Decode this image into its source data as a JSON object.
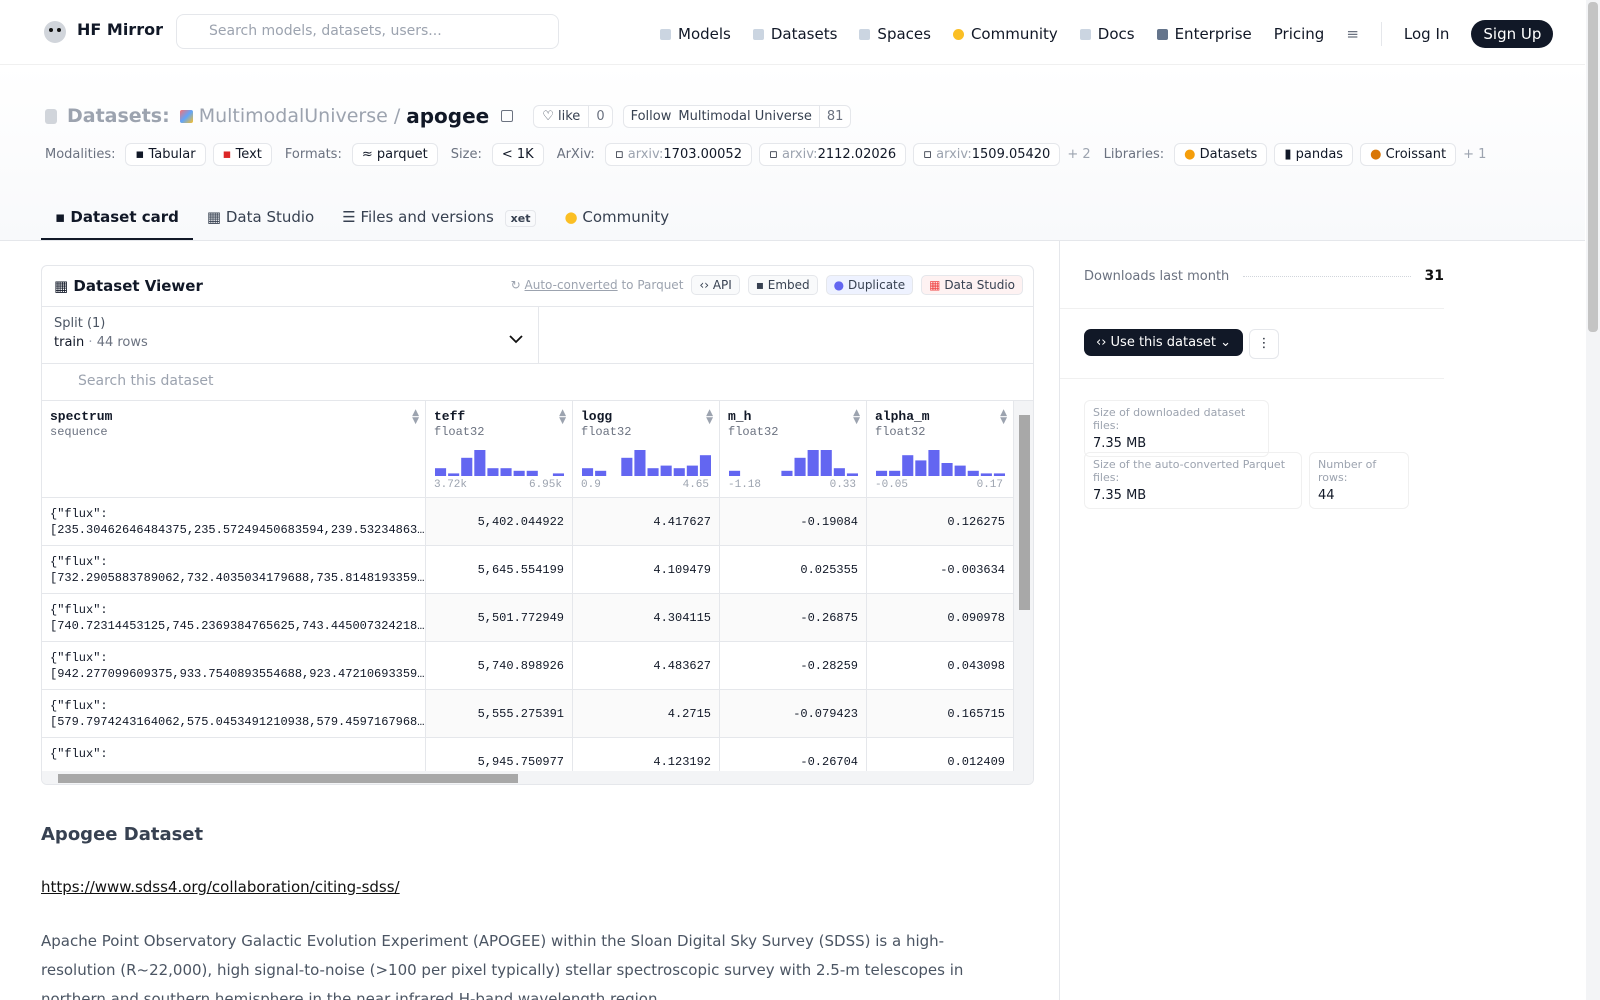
{
  "nav": {
    "brand": "HF Mirror",
    "search_placeholder": "Search models, datasets, users...",
    "links": [
      "Models",
      "Datasets",
      "Spaces",
      "Community",
      "Docs",
      "Enterprise",
      "Pricing"
    ],
    "login": "Log In",
    "signup": "Sign Up"
  },
  "header": {
    "section": "Datasets:",
    "owner": "MultimodalUniverse",
    "separator": "/",
    "name": "apogee",
    "like_label": "like",
    "like_count": 0,
    "follow_label": "Follow",
    "follow_org": "Multimodal Universe",
    "follow_count": 81
  },
  "tags": {
    "modalities_label": "Modalities:",
    "modalities": [
      "Tabular",
      "Text"
    ],
    "formats_label": "Formats:",
    "formats": [
      "parquet"
    ],
    "size_label": "Size:",
    "size": "< 1K",
    "arxiv_label": "ArXiv:",
    "arxiv": [
      {
        "prefix": "arxiv:",
        "id": "1703.00052"
      },
      {
        "prefix": "arxiv:",
        "id": "2112.02026"
      },
      {
        "prefix": "arxiv:",
        "id": "1509.05420"
      }
    ],
    "arxiv_more": "+ 2",
    "libraries_label": "Libraries:",
    "libraries": [
      "Datasets",
      "pandas",
      "Croissant"
    ],
    "libraries_more": "+ 1"
  },
  "tabs": [
    {
      "label": "Dataset card"
    },
    {
      "label": "Data Studio"
    },
    {
      "label": "Files and versions",
      "badge": "xet"
    },
    {
      "label": "Community"
    }
  ],
  "viewer": {
    "title": "Dataset Viewer",
    "converted_link": "Auto-converted",
    "converted_text": "to Parquet",
    "buttons": [
      "API",
      "Embed",
      "Duplicate",
      "Data Studio"
    ],
    "split_label": "Split (1)",
    "split_name": "train",
    "split_dot": "·",
    "split_rows": "44 rows",
    "search_placeholder": "Search this dataset",
    "columns": [
      {
        "name": "spectrum",
        "dtype": "sequence"
      },
      {
        "name": "teff",
        "dtype": "float32",
        "histogram": [
          3,
          1,
          7,
          10,
          3,
          3,
          2,
          2,
          0,
          1
        ],
        "min": "3.72k",
        "max": "6.95k"
      },
      {
        "name": "logg",
        "dtype": "float32",
        "histogram": [
          3,
          2,
          0,
          7,
          10,
          3,
          4,
          3,
          4,
          8
        ],
        "min": "0.9",
        "max": "4.65"
      },
      {
        "name": "m_h",
        "dtype": "float32",
        "histogram": [
          2,
          0,
          0,
          0,
          2,
          7,
          10,
          10,
          3,
          1
        ],
        "min": "-1.18",
        "max": "0.33"
      },
      {
        "name": "alpha_m",
        "dtype": "float32",
        "histogram": [
          2,
          2,
          8,
          6,
          10,
          5,
          4,
          2,
          1,
          1
        ],
        "min": "-0.05",
        "max": "0.17"
      }
    ],
    "rows": [
      [
        "{\"flux\":\n[235.30462646484375,235.57249450683594,239.53234863…",
        "5,402.044922",
        "4.417627",
        "-0.19084",
        "0.126275"
      ],
      [
        "{\"flux\":\n[732.2905883789062,732.4035034179688,735.8148193359…",
        "5,645.554199",
        "4.109479",
        "0.025355",
        "-0.003634"
      ],
      [
        "{\"flux\":\n[740.72314453125,745.2369384765625,743.445007324218…",
        "5,501.772949",
        "4.304115",
        "-0.26875",
        "0.090978"
      ],
      [
        "{\"flux\":\n[942.277099609375,933.7540893554688,923.47210693359…",
        "5,740.898926",
        "4.483627",
        "-0.28259",
        "0.043098"
      ],
      [
        "{\"flux\":\n[579.7974243164062,575.0453491210938,579.4597167968…",
        "5,555.275391",
        "4.2715",
        "-0.079423",
        "0.165715"
      ],
      [
        "{\"flux\":",
        "5,945.750977",
        "4.123192",
        "-0.26704",
        "0.012409"
      ]
    ]
  },
  "sidebar": {
    "downloads_label": "Downloads last month",
    "downloads": 31,
    "use_button": "Use this dataset",
    "stats": [
      {
        "label": "Size of downloaded dataset files:",
        "value": "7.35 MB"
      },
      {
        "label": "Size of the auto-converted Parquet files:",
        "value": "7.35 MB"
      },
      {
        "label": "Number of rows:",
        "value": 44
      }
    ]
  },
  "card": {
    "heading": "Apogee Dataset",
    "link": "https://www.sdss4.org/collaboration/citing-sdss/",
    "paragraph": "Apache Point Observatory Galactic Evolution Experiment (APOGEE) within the Sloan Digital Sky Survey (SDSS) is a high-resolution (R~22,000), high signal-to-noise (>100 per pixel typically) stellar spectroscopic survey with 2.5-m telescopes in northern and southern hemisphere in the near infrared H-band wavelength region."
  }
}
